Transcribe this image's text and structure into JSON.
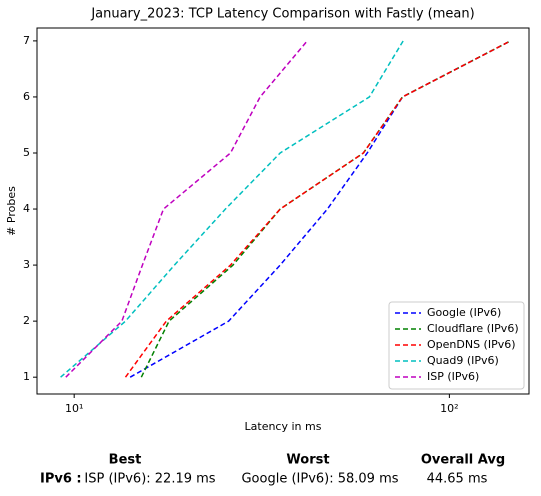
{
  "chart_data": {
    "type": "line",
    "title": "January_2023: TCP Latency Comparison with Fastly (mean)",
    "xlabel": "Latency in ms",
    "ylabel": "# Probes",
    "xscale": "log",
    "xlim": [
      7.96,
      163
    ],
    "ylim": [
      0.7,
      7.23
    ],
    "xticks": [
      {
        "value": 10,
        "label": "10¹"
      },
      {
        "value": 100,
        "label": "10²"
      }
    ],
    "yticks": [
      1,
      2,
      3,
      4,
      5,
      6,
      7
    ],
    "legend": "lower right",
    "series": [
      {
        "name": "Google (IPv6)",
        "color": "#0000ff",
        "x": [
          14.1,
          25.8,
          35.4,
          47.3,
          60.4,
          75.0,
          145.5
        ],
        "values": [
          1,
          2,
          3,
          4,
          5,
          6,
          7
        ]
      },
      {
        "name": "Cloudflare (IPv6)",
        "color": "#008000",
        "x": [
          15.1,
          17.9,
          26.5,
          35.4,
          59.0,
          75.0,
          145.5
        ],
        "values": [
          1,
          2,
          3,
          4,
          5,
          6,
          7
        ]
      },
      {
        "name": "OpenDNS (IPv6)",
        "color": "#ff0000",
        "x": [
          13.7,
          17.6,
          26.1,
          35.4,
          59.0,
          75.0,
          145.5
        ],
        "values": [
          1,
          2,
          3,
          4,
          5,
          6,
          7
        ]
      },
      {
        "name": "Quad9 (IPv6)",
        "color": "#00bfbf",
        "x": [
          9.2,
          13.7,
          18.5,
          25.3,
          35.4,
          61.2,
          75.3
        ],
        "values": [
          1,
          2,
          3,
          4,
          5,
          6,
          7
        ]
      },
      {
        "name": "ISP (IPv6)",
        "color": "#bf00bf",
        "x": [
          9.5,
          13.4,
          15.2,
          17.3,
          26.1,
          31.3,
          41.8
        ],
        "values": [
          1,
          2,
          3,
          4,
          5,
          6,
          7
        ]
      }
    ]
  },
  "summary": {
    "headers": [
      "Best",
      "Worst",
      "Overall Avg"
    ],
    "row_label": "IPv6 :",
    "best": "ISP (IPv6): 22.19 ms",
    "worst": "Google (IPv6): 58.09 ms",
    "avg": "44.65 ms"
  }
}
